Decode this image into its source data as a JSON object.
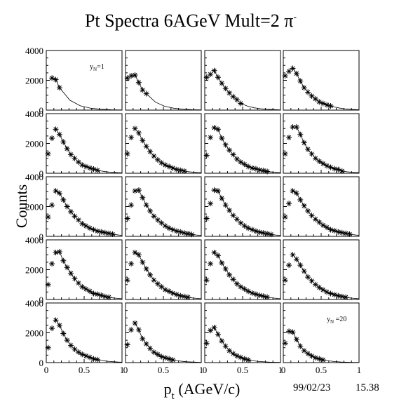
{
  "title": "Pt Spectra 6AGeV Mult=2 π",
  "title_superscript": "-",
  "date_stamp": "99/02/23",
  "time_stamp": "15.38",
  "chart_data": {
    "type": "scatter",
    "layout": "grid 5 rows x 4 columns of small-multiple panels",
    "marker": "asterisk",
    "fit_curve": true,
    "xlabel": "p",
    "xlabel_subscript": "t",
    "xlabel_rest": " (AGeV/c)",
    "ylabel": "Counts",
    "xlim": [
      0,
      1
    ],
    "ylim": [
      0,
      4000
    ],
    "x_ticks": [
      "0",
      "0.5",
      "1"
    ],
    "y_ticks": [
      "0",
      "2000",
      "4000"
    ],
    "panel_labels": [
      {
        "panel": 1,
        "text": "y",
        "sub": "N",
        "rest": "=1"
      },
      {
        "panel": 20,
        "text": "y",
        "sub": "N",
        "rest": " =20"
      }
    ],
    "panels": [
      {
        "panel": 1,
        "x": [
          0.075,
          0.125,
          0.175
        ],
        "y": [
          2150,
          2050,
          1500
        ]
      },
      {
        "panel": 2,
        "x": [
          0.025,
          0.075,
          0.125,
          0.175,
          0.225,
          0.275
        ],
        "y": [
          2150,
          2300,
          2350,
          1850,
          1350,
          1100
        ]
      },
      {
        "panel": 3,
        "x": [
          0.025,
          0.075,
          0.125,
          0.175,
          0.225,
          0.275,
          0.325,
          0.375,
          0.425,
          0.475
        ],
        "y": [
          2200,
          2400,
          2650,
          2200,
          1800,
          1450,
          1150,
          900,
          700,
          450
        ]
      },
      {
        "panel": 4,
        "x": [
          0.025,
          0.075,
          0.125,
          0.175,
          0.225,
          0.275,
          0.325,
          0.375,
          0.425,
          0.475,
          0.525,
          0.575,
          0.625
        ],
        "y": [
          2300,
          2600,
          2800,
          2450,
          1950,
          1500,
          1200,
          950,
          750,
          550,
          450,
          350,
          280
        ]
      },
      {
        "panel": 5,
        "x": [
          0.025,
          0.075,
          0.125,
          0.175,
          0.225,
          0.275,
          0.325,
          0.375,
          0.425,
          0.475,
          0.525,
          0.575,
          0.625,
          0.675
        ],
        "y": [
          1300,
          2350,
          2950,
          2600,
          2100,
          1650,
          1250,
          1000,
          750,
          550,
          450,
          350,
          280,
          200
        ]
      },
      {
        "panel": 6,
        "x": [
          0.025,
          0.075,
          0.125,
          0.175,
          0.225,
          0.275,
          0.325,
          0.375,
          0.425,
          0.475,
          0.525,
          0.575,
          0.625,
          0.675,
          0.725,
          0.775
        ],
        "y": [
          1300,
          2400,
          3000,
          2700,
          2200,
          1800,
          1450,
          1150,
          900,
          700,
          550,
          450,
          350,
          250,
          200,
          150
        ]
      },
      {
        "panel": 7,
        "x": [
          0.025,
          0.075,
          0.125,
          0.175,
          0.225,
          0.275,
          0.325,
          0.375,
          0.425,
          0.475,
          0.525,
          0.575,
          0.625,
          0.675,
          0.725,
          0.775,
          0.825
        ],
        "y": [
          1200,
          2400,
          3050,
          2950,
          2350,
          1900,
          1550,
          1250,
          950,
          750,
          600,
          450,
          350,
          300,
          220,
          180,
          120
        ]
      },
      {
        "panel": 8,
        "x": [
          0.025,
          0.075,
          0.125,
          0.175,
          0.225,
          0.275,
          0.325,
          0.375,
          0.425,
          0.475,
          0.525,
          0.575,
          0.625,
          0.675,
          0.725,
          0.775
        ],
        "y": [
          1300,
          2400,
          3100,
          3100,
          2600,
          2050,
          1600,
          1300,
          1000,
          800,
          650,
          500,
          400,
          300,
          250,
          150
        ]
      },
      {
        "panel": 9,
        "x": [
          0.025,
          0.075,
          0.125,
          0.175,
          0.225,
          0.275,
          0.325,
          0.375,
          0.425,
          0.475,
          0.525,
          0.575,
          0.625,
          0.675,
          0.725,
          0.775,
          0.825,
          0.875
        ],
        "y": [
          1300,
          2100,
          3050,
          2900,
          2450,
          2000,
          1650,
          1350,
          1100,
          850,
          700,
          550,
          450,
          350,
          300,
          250,
          200,
          150
        ]
      },
      {
        "panel": 10,
        "x": [
          0.025,
          0.075,
          0.125,
          0.175,
          0.225,
          0.275,
          0.325,
          0.375,
          0.425,
          0.475,
          0.525,
          0.575,
          0.625,
          0.675,
          0.725,
          0.775,
          0.825,
          0.875
        ],
        "y": [
          1200,
          2100,
          3050,
          3100,
          2600,
          2100,
          1700,
          1350,
          1100,
          900,
          700,
          550,
          450,
          350,
          300,
          230,
          180,
          130
        ]
      },
      {
        "panel": 11,
        "x": [
          0.025,
          0.075,
          0.125,
          0.175,
          0.225,
          0.275,
          0.325,
          0.375,
          0.425,
          0.475,
          0.525,
          0.575,
          0.625,
          0.675,
          0.725,
          0.775,
          0.825,
          0.875
        ],
        "y": [
          1200,
          2200,
          3100,
          3050,
          2550,
          2100,
          1750,
          1400,
          1150,
          900,
          700,
          550,
          450,
          350,
          280,
          230,
          180,
          130
        ]
      },
      {
        "panel": 12,
        "x": [
          0.025,
          0.075,
          0.125,
          0.175,
          0.225,
          0.275,
          0.325,
          0.375,
          0.425,
          0.475,
          0.525,
          0.575,
          0.625,
          0.675,
          0.725,
          0.775,
          0.825,
          0.875
        ],
        "y": [
          1300,
          2200,
          3050,
          2900,
          2450,
          2050,
          1700,
          1400,
          1150,
          950,
          750,
          600,
          450,
          380,
          300,
          250,
          200,
          150
        ]
      },
      {
        "panel": 13,
        "x": [
          0.025,
          0.075,
          0.125,
          0.175,
          0.225,
          0.275,
          0.325,
          0.375,
          0.425,
          0.475,
          0.525,
          0.575,
          0.625,
          0.675,
          0.725,
          0.775,
          0.825
        ],
        "y": [
          1000,
          2400,
          3150,
          3200,
          2600,
          2150,
          1750,
          1400,
          1100,
          850,
          700,
          550,
          400,
          350,
          280,
          200,
          150
        ]
      },
      {
        "panel": 14,
        "x": [
          0.025,
          0.075,
          0.125,
          0.175,
          0.225,
          0.275,
          0.325,
          0.375,
          0.425,
          0.475,
          0.525,
          0.575,
          0.625,
          0.675,
          0.725,
          0.775,
          0.825
        ],
        "y": [
          1300,
          2400,
          3150,
          3000,
          2500,
          2050,
          1650,
          1300,
          1050,
          850,
          650,
          550,
          420,
          330,
          250,
          200,
          150
        ]
      },
      {
        "panel": 15,
        "x": [
          0.025,
          0.075,
          0.125,
          0.175,
          0.225,
          0.275,
          0.325,
          0.375,
          0.425,
          0.475,
          0.525,
          0.575,
          0.625,
          0.675,
          0.725,
          0.775,
          0.825
        ],
        "y": [
          1300,
          2400,
          3150,
          2950,
          2450,
          2050,
          1650,
          1350,
          1050,
          850,
          700,
          550,
          430,
          350,
          280,
          220,
          160
        ]
      },
      {
        "panel": 16,
        "x": [
          0.025,
          0.075,
          0.125,
          0.175,
          0.225,
          0.275,
          0.325,
          0.375,
          0.425,
          0.475,
          0.525,
          0.575,
          0.625,
          0.675,
          0.725,
          0.775,
          0.825
        ],
        "y": [
          1300,
          2300,
          3000,
          2700,
          2300,
          1900,
          1500,
          1250,
          1000,
          800,
          650,
          500,
          400,
          320,
          250,
          200,
          150
        ]
      },
      {
        "panel": 17,
        "x": [
          0.025,
          0.075,
          0.125,
          0.175,
          0.225,
          0.275,
          0.325,
          0.375,
          0.425,
          0.475,
          0.525,
          0.575,
          0.625,
          0.675
        ],
        "y": [
          1000,
          2300,
          2850,
          2500,
          1950,
          1500,
          1150,
          900,
          700,
          550,
          450,
          350,
          250,
          200
        ]
      },
      {
        "panel": 18,
        "x": [
          0.025,
          0.075,
          0.125,
          0.175,
          0.225,
          0.275,
          0.325,
          0.375,
          0.425,
          0.475,
          0.525,
          0.575,
          0.625
        ],
        "y": [
          1200,
          2200,
          2650,
          2200,
          1600,
          1250,
          950,
          700,
          550,
          400,
          320,
          250,
          180
        ]
      },
      {
        "panel": 19,
        "x": [
          0.025,
          0.075,
          0.125,
          0.175,
          0.225,
          0.275,
          0.325,
          0.375,
          0.425,
          0.475,
          0.525,
          0.575
        ],
        "y": [
          1300,
          2150,
          2350,
          1900,
          1450,
          1100,
          800,
          600,
          450,
          350,
          250,
          180
        ]
      },
      {
        "panel": 20,
        "x": [
          0.025,
          0.075,
          0.125,
          0.175,
          0.225,
          0.275,
          0.325,
          0.375,
          0.425,
          0.475,
          0.525
        ],
        "y": [
          1300,
          2100,
          2050,
          1550,
          1100,
          800,
          600,
          450,
          320,
          250,
          180
        ]
      }
    ]
  }
}
